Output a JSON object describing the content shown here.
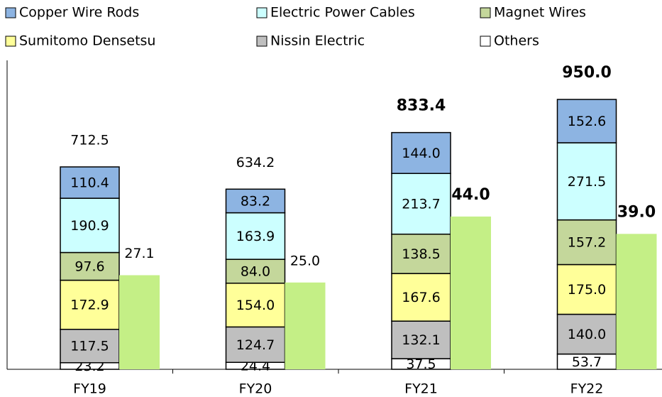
{
  "chart_data": {
    "type": "stacked_bar",
    "categories": [
      "FY19",
      "FY20",
      "FY21",
      "FY22"
    ],
    "series": [
      {
        "name": "Copper Wire Rods",
        "color": "#8db4e2",
        "values": [
          110.4,
          83.2,
          144.0,
          152.6
        ],
        "value_labels": [
          "110.4",
          "83.2",
          "144.0",
          "152.6"
        ]
      },
      {
        "name": "Electric Power Cables",
        "color": "#ccffff",
        "values": [
          190.9,
          163.9,
          213.7,
          271.5
        ],
        "value_labels": [
          "190.9",
          "163.9",
          "213.7",
          "271.5"
        ]
      },
      {
        "name": "Magnet Wires",
        "color": "#c4d79b",
        "values": [
          97.6,
          84.0,
          138.5,
          157.2
        ],
        "value_labels": [
          "97.6",
          "84.0",
          "138.5",
          "157.2"
        ]
      },
      {
        "name": "Sumitomo Densetsu",
        "color": "#ffff99",
        "values": [
          172.9,
          154.0,
          167.6,
          175.0
        ],
        "value_labels": [
          "172.9",
          "154.0",
          "167.6",
          "175.0"
        ]
      },
      {
        "name": "Nissin Electric",
        "color": "#bfbfbf",
        "values": [
          117.5,
          124.7,
          132.1,
          140.0
        ],
        "value_labels": [
          "117.5",
          "124.7",
          "132.1",
          "140.0"
        ]
      },
      {
        "name": "Others",
        "color": "#ffffff",
        "values": [
          23.2,
          24.4,
          37.5,
          53.7
        ],
        "value_labels": [
          "23.2",
          "24.4",
          "37.5",
          "53.7"
        ]
      }
    ],
    "totals": [
      712.5,
      634.2,
      833.4,
      950.0
    ],
    "totals_labels": [
      "712.5",
      "634.2",
      "833.4",
      "950.0"
    ],
    "side_bar": {
      "color": "#c4ef86",
      "axis": "y2",
      "values": [
        27.1,
        25.0,
        44.0,
        39.0
      ],
      "value_labels": [
        "27.1",
        "25.0",
        "44.0",
        "39.0"
      ]
    },
    "ylim": [
      0,
      1100
    ],
    "y2lim": [
      0,
      90
    ]
  }
}
